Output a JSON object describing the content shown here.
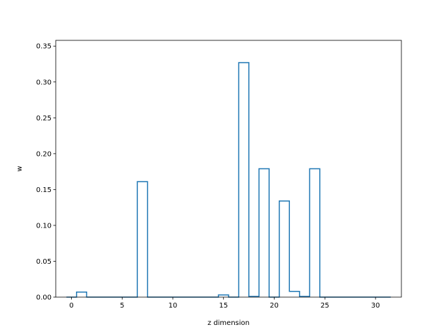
{
  "chart_data": {
    "type": "bar",
    "style": "step-outline",
    "color": "#1f77b4",
    "xlabel": "z dimension",
    "ylabel": "w",
    "xlim": [
      -1.55,
      32.55
    ],
    "ylim": [
      0,
      0.358
    ],
    "xticks": [
      0,
      5,
      10,
      15,
      20,
      25,
      30
    ],
    "xtick_labels": [
      "0",
      "5",
      "10",
      "15",
      "20",
      "25",
      "30"
    ],
    "yticks": [
      0.0,
      0.05,
      0.1,
      0.15,
      0.2,
      0.25,
      0.3,
      0.35
    ],
    "ytick_labels": [
      "0.00",
      "0.05",
      "0.10",
      "0.15",
      "0.20",
      "0.25",
      "0.30",
      "0.35"
    ],
    "x": [
      0,
      1,
      2,
      3,
      4,
      5,
      6,
      7,
      8,
      9,
      10,
      11,
      12,
      13,
      14,
      15,
      16,
      17,
      18,
      19,
      20,
      21,
      22,
      23,
      24,
      25,
      26,
      27,
      28,
      29,
      30,
      31
    ],
    "values": [
      0,
      0.007,
      0,
      0,
      0,
      0,
      0,
      0.161,
      0,
      0,
      0,
      0,
      0,
      0,
      0,
      0.003,
      0,
      0.327,
      0.001,
      0.179,
      0,
      0.134,
      0.008,
      0.001,
      0.179,
      0,
      0,
      0,
      0,
      0,
      0,
      0
    ],
    "grid": false,
    "legend": "none"
  }
}
